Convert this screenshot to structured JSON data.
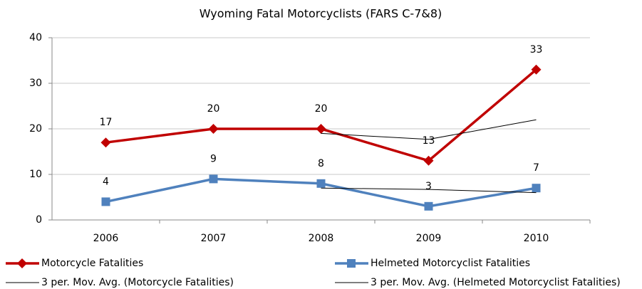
{
  "chart_data": {
    "type": "line",
    "title": "Wyoming Fatal Motorcyclists  (FARS C-7&8)",
    "categories": [
      "2006",
      "2007",
      "2008",
      "2009",
      "2010"
    ],
    "series": [
      {
        "name": "Motorcycle Fatalities",
        "color": "#c00000",
        "marker": "diamond",
        "width": 3.5,
        "data_labels": true,
        "values": [
          17,
          20,
          20,
          13,
          33
        ]
      },
      {
        "name": "Helmeted Motorcyclist Fatalities",
        "color": "#4f81bd",
        "marker": "square",
        "width": 3.5,
        "data_labels": true,
        "values": [
          4,
          9,
          8,
          3,
          7
        ]
      },
      {
        "name": "3 per. Mov. Avg. (Motorcycle Fatalities)",
        "color": "#000000",
        "width": 1,
        "values": [
          null,
          null,
          19,
          17.7,
          22
        ]
      },
      {
        "name": "3 per. Mov. Avg. (Helmeted Motorcyclist Fatalities)",
        "color": "#000000",
        "width": 1,
        "values": [
          null,
          null,
          7,
          6.7,
          6
        ]
      }
    ],
    "ylim": [
      0,
      40
    ],
    "yticks": [
      0,
      10,
      20,
      30,
      40
    ],
    "grid": true
  }
}
